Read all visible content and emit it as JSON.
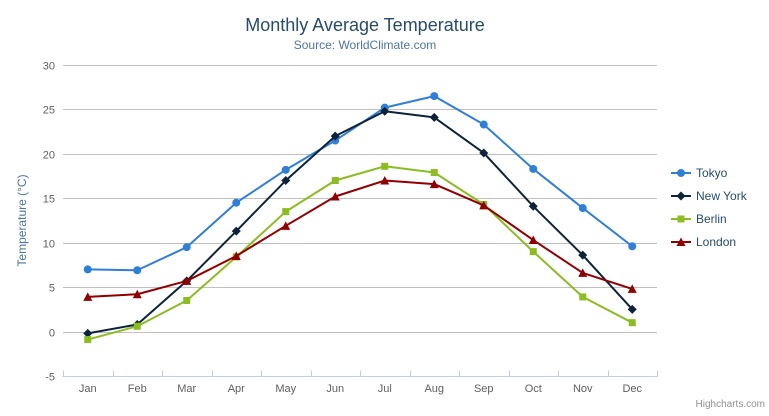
{
  "header": {
    "title": "Monthly Average Temperature",
    "subtitle": "Source: WorldClimate.com"
  },
  "credits": {
    "label": "Highcharts.com"
  },
  "export_menu": {
    "icon": "hamburger-menu-icon"
  },
  "theme": {
    "title_color": "#274b6d",
    "subtitle_color": "#4d759e",
    "axis_label_color": "#606060",
    "y_axis_title_color": "#4d759e",
    "grid_color": "#c0c0c0",
    "axis_line_color": "#c0d0e0",
    "legend_text_color": "#274b6d",
    "credits_color": "#909090",
    "menu_icon_color": "#666666",
    "background_color": "#ffffff"
  },
  "chart_data": {
    "type": "line",
    "title": "Monthly Average Temperature",
    "subtitle": "Source: WorldClimate.com",
    "categories": [
      "Jan",
      "Feb",
      "Mar",
      "Apr",
      "May",
      "Jun",
      "Jul",
      "Aug",
      "Sep",
      "Oct",
      "Nov",
      "Dec"
    ],
    "xlabel": "",
    "ylabel": "Temperature (°C)",
    "ylim": [
      -5,
      30
    ],
    "ytick_step": 5,
    "grid": true,
    "legend_position": "right",
    "series": [
      {
        "name": "Tokyo",
        "color": "#2f7ed8",
        "marker": "circle",
        "values": [
          7.0,
          6.9,
          9.5,
          14.5,
          18.2,
          21.5,
          25.2,
          26.5,
          23.3,
          18.3,
          13.9,
          9.6
        ]
      },
      {
        "name": "New York",
        "color": "#0d233a",
        "marker": "diamond",
        "values": [
          -0.2,
          0.8,
          5.7,
          11.3,
          17.0,
          22.0,
          24.8,
          24.1,
          20.1,
          14.1,
          8.6,
          2.5
        ]
      },
      {
        "name": "Berlin",
        "color": "#8bbc21",
        "marker": "square",
        "values": [
          -0.9,
          0.6,
          3.5,
          8.4,
          13.5,
          17.0,
          18.6,
          17.9,
          14.3,
          9.0,
          3.9,
          1.0
        ]
      },
      {
        "name": "London",
        "color": "#910000",
        "marker": "triangle",
        "values": [
          3.9,
          4.2,
          5.7,
          8.5,
          11.9,
          15.2,
          17.0,
          16.6,
          14.2,
          10.3,
          6.6,
          4.8
        ]
      }
    ]
  }
}
